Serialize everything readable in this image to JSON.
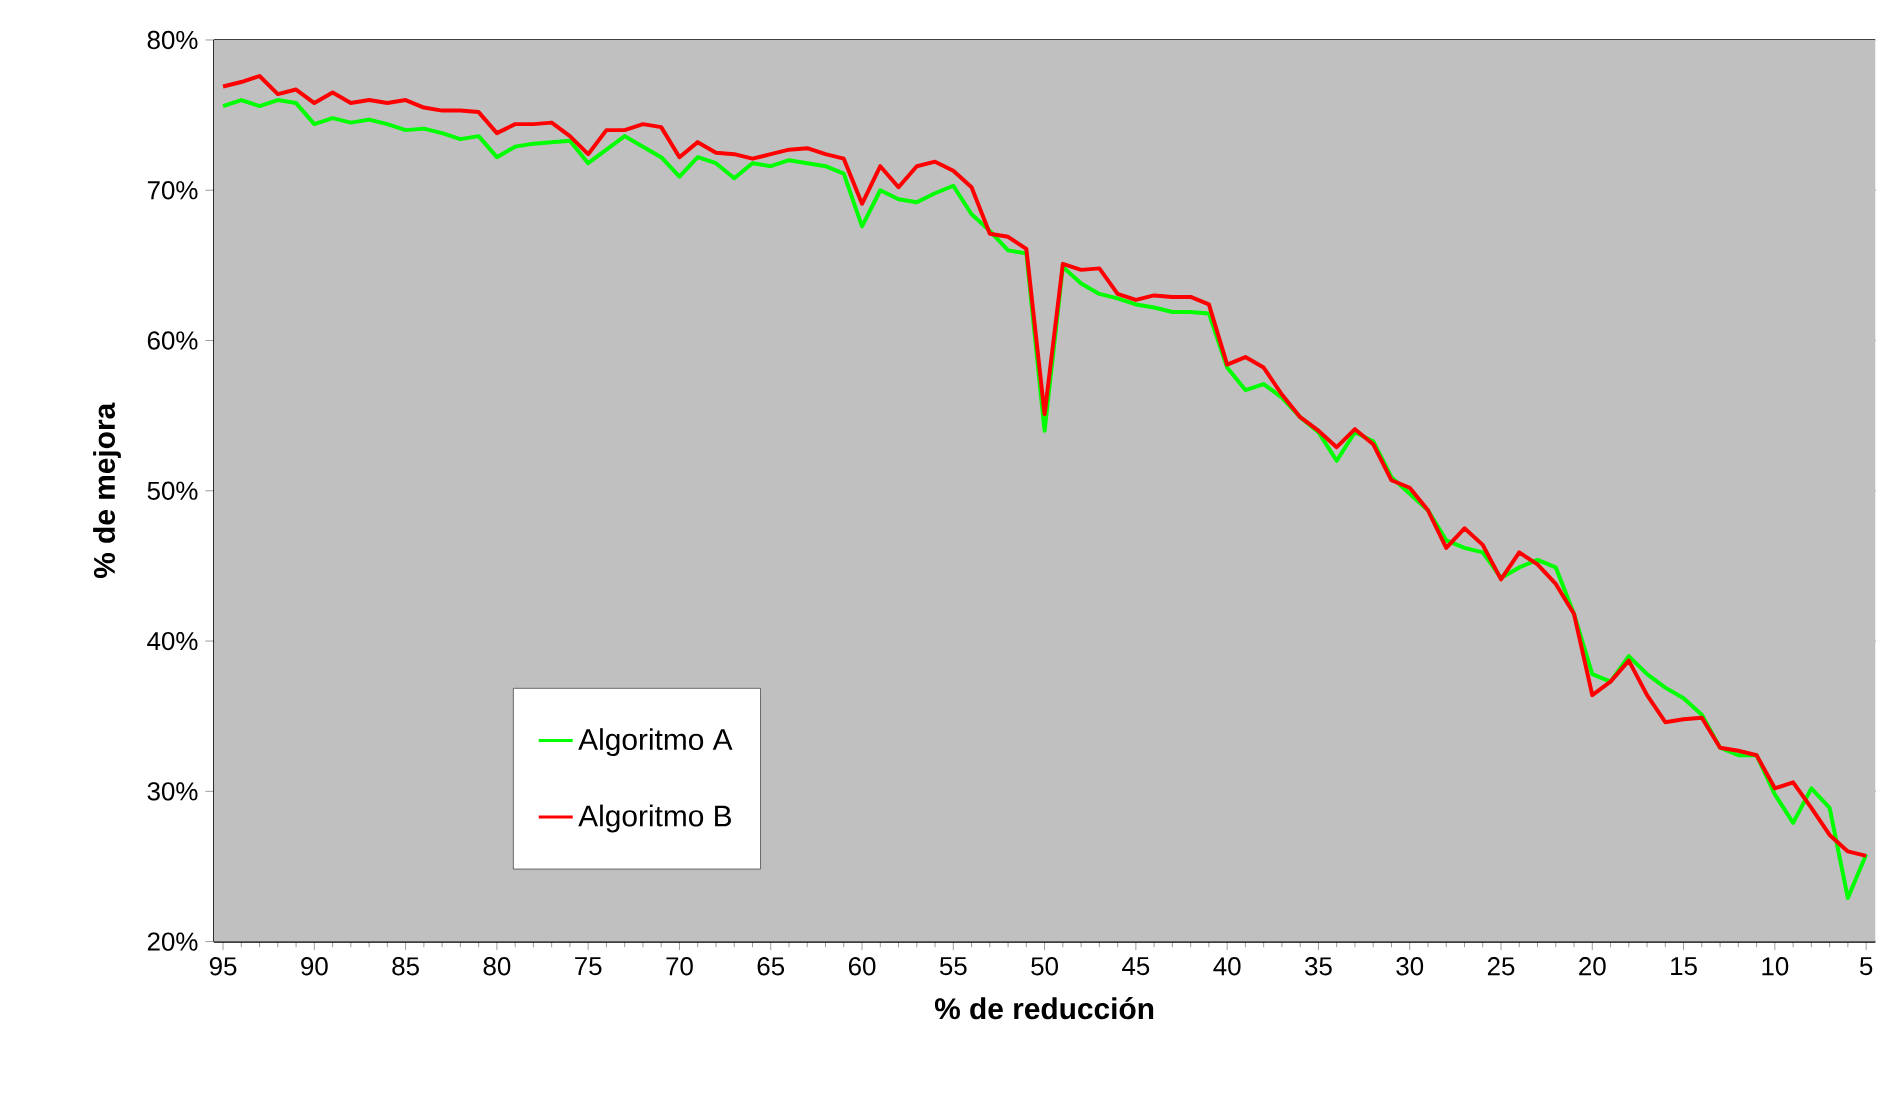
{
  "chart_data": {
    "type": "line",
    "xlabel": "% de reducción",
    "ylabel": "% de mejora",
    "x": [
      95,
      94,
      93,
      92,
      91,
      90,
      89,
      88,
      87,
      86,
      85,
      84,
      83,
      82,
      81,
      80,
      79,
      78,
      77,
      76,
      75,
      74,
      73,
      72,
      71,
      70,
      69,
      68,
      67,
      66,
      65,
      64,
      63,
      62,
      61,
      60,
      59,
      58,
      57,
      56,
      55,
      54,
      53,
      52,
      51,
      50,
      49,
      48,
      47,
      46,
      45,
      44,
      43,
      42,
      41,
      40,
      39,
      38,
      37,
      36,
      35,
      34,
      33,
      32,
      31,
      30,
      29,
      28,
      27,
      26,
      25,
      24,
      23,
      22,
      21,
      20,
      19,
      18,
      17,
      16,
      15,
      14,
      13,
      12,
      11,
      10,
      9,
      8,
      7,
      6,
      5
    ],
    "series": [
      {
        "name": "Algoritmo A",
        "color": "#00ff00",
        "values": [
          75.6,
          76.0,
          75.6,
          76.0,
          75.8,
          74.4,
          74.8,
          74.5,
          74.7,
          74.4,
          74.0,
          74.1,
          73.8,
          73.4,
          73.6,
          72.2,
          72.9,
          73.1,
          73.2,
          73.3,
          71.8,
          72.7,
          73.6,
          72.9,
          72.2,
          70.9,
          72.2,
          71.8,
          70.8,
          71.8,
          71.6,
          72.0,
          71.8,
          71.6,
          71.1,
          67.6,
          70.0,
          69.4,
          69.2,
          69.8,
          70.3,
          68.4,
          67.3,
          66.0,
          65.8,
          54.0,
          64.9,
          63.8,
          63.1,
          62.8,
          62.4,
          62.2,
          61.9,
          61.9,
          61.8,
          58.2,
          56.7,
          57.1,
          56.2,
          54.9,
          53.9,
          52.0,
          53.9,
          53.3,
          50.9,
          49.8,
          48.7,
          46.7,
          46.2,
          45.9,
          44.2,
          44.9,
          45.4,
          44.9,
          41.8,
          37.8,
          37.3,
          39.0,
          37.8,
          36.9,
          36.2,
          35.1,
          32.9,
          32.4,
          32.4,
          29.8,
          27.9,
          30.2,
          28.9,
          22.9,
          25.8
        ]
      },
      {
        "name": "Algoritmo B",
        "color": "#ff0000",
        "values": [
          76.9,
          77.2,
          77.6,
          76.4,
          76.7,
          75.8,
          76.5,
          75.8,
          76.0,
          75.8,
          76.0,
          75.5,
          75.3,
          75.3,
          75.2,
          73.8,
          74.4,
          74.4,
          74.5,
          73.6,
          72.4,
          74.0,
          74.0,
          74.4,
          74.2,
          72.2,
          73.2,
          72.5,
          72.4,
          72.1,
          72.4,
          72.7,
          72.8,
          72.4,
          72.1,
          69.1,
          71.6,
          70.2,
          71.6,
          71.9,
          71.3,
          70.2,
          67.1,
          66.9,
          66.1,
          55.1,
          65.1,
          64.7,
          64.8,
          63.1,
          62.7,
          63.0,
          62.9,
          62.9,
          62.4,
          58.4,
          58.9,
          58.2,
          56.4,
          54.9,
          54.0,
          52.9,
          54.1,
          53.1,
          50.7,
          50.2,
          48.7,
          46.2,
          47.5,
          46.4,
          44.1,
          45.9,
          45.1,
          43.8,
          41.8,
          36.4,
          37.3,
          38.7,
          36.4,
          34.6,
          34.8,
          34.9,
          32.9,
          32.7,
          32.4,
          30.2,
          30.6,
          28.9,
          27.1,
          26.0,
          25.7
        ]
      }
    ],
    "xlim": [
      95.5,
      4.5
    ],
    "xticks": [
      95,
      90,
      85,
      80,
      75,
      70,
      65,
      60,
      55,
      50,
      45,
      40,
      35,
      30,
      25,
      20,
      15,
      10,
      5
    ],
    "ylim": [
      20,
      80
    ],
    "yticks": [
      {
        "value": 20,
        "label": "20%"
      },
      {
        "value": 30,
        "label": "30%"
      },
      {
        "value": 40,
        "label": "40%"
      },
      {
        "value": 50,
        "label": "50%"
      },
      {
        "value": 60,
        "label": "60%"
      },
      {
        "value": 70,
        "label": "70%"
      },
      {
        "value": 80,
        "label": "80%"
      }
    ],
    "grid": "y",
    "legend": "bottom left",
    "marker": "none",
    "line_style": "solid"
  }
}
